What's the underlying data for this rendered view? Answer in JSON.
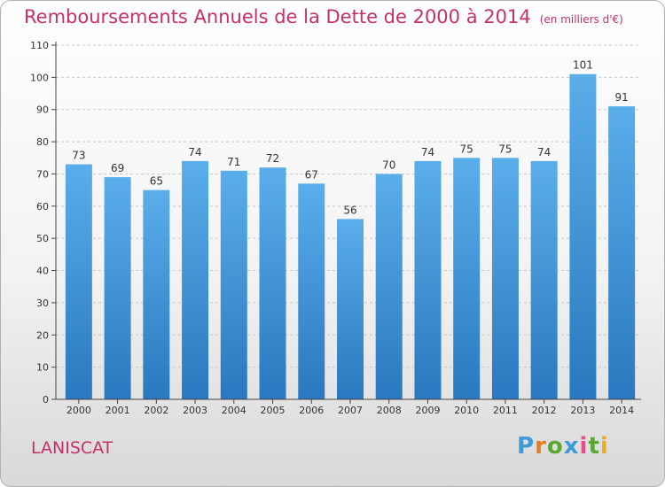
{
  "header": {
    "title": "Remboursements Annuels de la Dette de 2000 à 2014",
    "subtitle": "(en milliers d'€)"
  },
  "footer": {
    "commune": "LANISCAT",
    "logo": {
      "letters": [
        "P",
        "r",
        "o",
        "x",
        "i",
        "t",
        "i"
      ],
      "colors": [
        "#3d9bd8",
        "#e87c1e",
        "#5aa832",
        "#3d9bd8",
        "#e84c8c",
        "#5aa832",
        "#e8b020"
      ]
    }
  },
  "chart_data": {
    "type": "bar",
    "title": "Remboursements Annuels de la Dette de 2000 à 2014",
    "unit": "(en milliers d'€)",
    "categories": [
      "2000",
      "2001",
      "2002",
      "2003",
      "2004",
      "2005",
      "2006",
      "2007",
      "2008",
      "2009",
      "2010",
      "2011",
      "2012",
      "2013",
      "2014"
    ],
    "values": [
      73,
      69,
      65,
      74,
      71,
      72,
      67,
      56,
      70,
      74,
      75,
      75,
      74,
      101,
      91
    ],
    "ylim": [
      0,
      110
    ],
    "yticks": [
      0,
      10,
      20,
      30,
      40,
      50,
      60,
      70,
      80,
      90,
      100,
      110
    ],
    "grid": true,
    "colors": {
      "bar_top": "#5aaeea",
      "bar_bottom": "#2a78bf",
      "grid": "#c8c8c8",
      "axis": "#444444",
      "label": "#333333"
    }
  }
}
